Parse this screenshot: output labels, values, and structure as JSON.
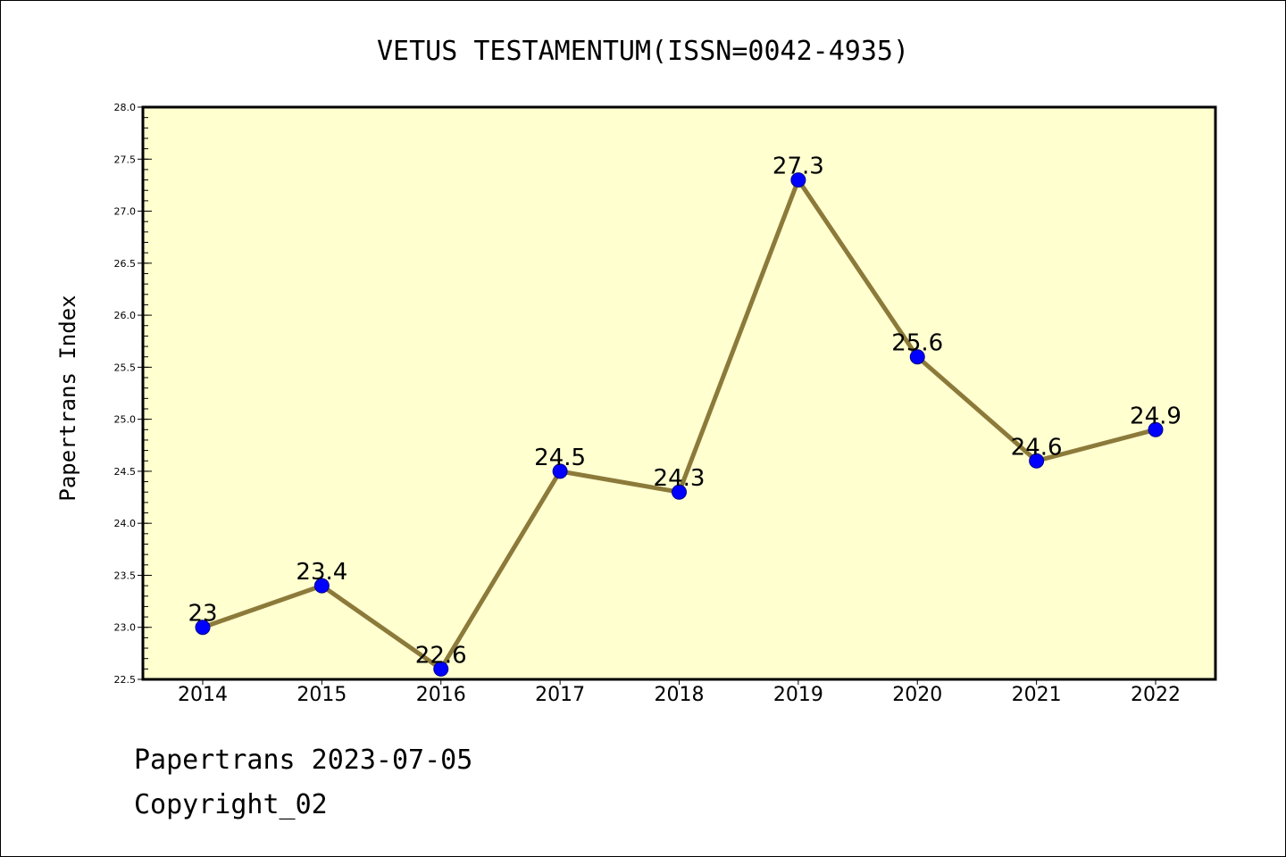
{
  "chart_data": {
    "type": "line",
    "title": "VETUS TESTAMENTUM(ISSN=0042-4935)",
    "xlabel": "",
    "ylabel": "Papertrans Index",
    "categories": [
      "2014",
      "2015",
      "2016",
      "2017",
      "2018",
      "2019",
      "2020",
      "2021",
      "2022"
    ],
    "series": [
      {
        "values": [
          23,
          23.4,
          22.6,
          24.5,
          24.3,
          27.3,
          25.6,
          24.6,
          24.9
        ],
        "labels": [
          "23",
          "23.4",
          "22.6",
          "24.5",
          "24.3",
          "27.3",
          "25.6",
          "24.6",
          "24.9"
        ]
      }
    ],
    "ylim": [
      22.5,
      28.0
    ],
    "yticks": [
      "22.5",
      "23.0",
      "23.5",
      "24.0",
      "24.5",
      "25.0",
      "25.5",
      "26.0",
      "26.5",
      "27.0",
      "27.5",
      "28.0"
    ],
    "grid": false,
    "legend": "none",
    "colors": {
      "plot_background": "#ffffd0",
      "line": "#8c7a3a",
      "marker": "#0000ff"
    }
  },
  "footer": {
    "line1": "Papertrans 2023-07-05",
    "line2": "Copyright_02"
  }
}
